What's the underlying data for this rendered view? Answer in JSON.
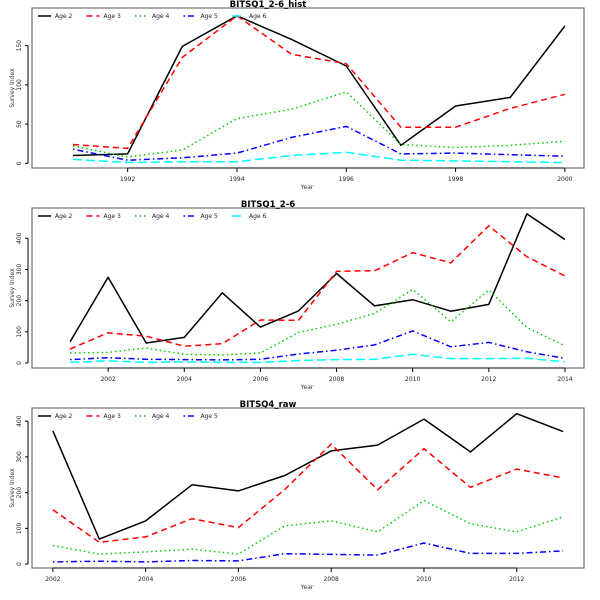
{
  "chart_data": [
    {
      "type": "line",
      "title": "BITSQ1_2-6_hist",
      "xlabel": "Year",
      "ylabel": "Survey Index",
      "x": [
        1991,
        1992,
        1993,
        1994,
        1995,
        1996,
        1997,
        1998,
        1999,
        2000
      ],
      "xlim": [
        1990.25,
        2000.35
      ],
      "ylim": [
        -6,
        198
      ],
      "xticks": [
        1992,
        1994,
        1996,
        1998,
        2000
      ],
      "yticks": [
        0,
        50,
        100,
        150
      ],
      "grid": false,
      "legend_position": "top-left, horizontal",
      "series": [
        {
          "name": "Age 2",
          "color": "#000000",
          "dash": "solid",
          "values": [
            10,
            12,
            149,
            188,
            158,
            124,
            23,
            73,
            84,
            175
          ]
        },
        {
          "name": "Age 3",
          "color": "#ff0000",
          "dash": "dashed",
          "values": [
            24,
            19,
            135,
            188,
            139,
            127,
            46,
            46,
            70,
            88
          ]
        },
        {
          "name": "Age 4",
          "color": "#00cd00",
          "dash": "dotted",
          "values": [
            22,
            8,
            17,
            57,
            69,
            91,
            24,
            20,
            23,
            28
          ]
        },
        {
          "name": "Age 5",
          "color": "#0000ff",
          "dash": "dotdash",
          "values": [
            18,
            4,
            7,
            13,
            33,
            47,
            12,
            13,
            11,
            9
          ]
        },
        {
          "name": "Age 6",
          "color": "#00ffff",
          "dash": "longdash",
          "values": [
            5,
            1,
            2,
            2,
            10,
            14,
            4,
            3,
            2,
            1
          ]
        }
      ]
    },
    {
      "type": "line",
      "title": "BITSQ1_2-6",
      "xlabel": "Year",
      "ylabel": "Survey Index",
      "x": [
        2001,
        2002,
        2003,
        2004,
        2005,
        2006,
        2007,
        2008,
        2009,
        2010,
        2011,
        2012,
        2013,
        2014
      ],
      "xlim": [
        2000.0,
        2014.5
      ],
      "ylim": [
        -16,
        497
      ],
      "xticks": [
        2002,
        2004,
        2006,
        2008,
        2010,
        2012,
        2014
      ],
      "yticks": [
        0,
        100,
        200,
        300,
        400
      ],
      "grid": false,
      "legend_position": "top-left, horizontal",
      "series": [
        {
          "name": "Age 2",
          "color": "#000000",
          "dash": "solid",
          "values": [
            68,
            275,
            64,
            82,
            225,
            115,
            167,
            287,
            183,
            203,
            166,
            188,
            478,
            396
          ]
        },
        {
          "name": "Age 3",
          "color": "#ff0000",
          "dash": "dashed",
          "values": [
            45,
            97,
            86,
            54,
            62,
            138,
            137,
            294,
            296,
            354,
            321,
            440,
            341,
            279
          ]
        },
        {
          "name": "Age 4",
          "color": "#00cd00",
          "dash": "dotted",
          "values": [
            32,
            34,
            48,
            28,
            26,
            32,
            98,
            124,
            159,
            236,
            132,
            234,
            114,
            55
          ]
        },
        {
          "name": "Age 5",
          "color": "#0000ff",
          "dash": "dotdash",
          "values": [
            11,
            17,
            12,
            11,
            10,
            12,
            29,
            41,
            58,
            103,
            52,
            66,
            36,
            15
          ]
        },
        {
          "name": "Age 6",
          "color": "#00ffff",
          "dash": "longdash",
          "values": [
            2,
            7,
            2,
            4,
            2,
            2,
            8,
            11,
            12,
            28,
            14,
            14,
            15,
            4
          ]
        }
      ]
    },
    {
      "type": "line",
      "title": "BITSQ4_raw",
      "xlabel": "Year",
      "ylabel": "Survey Index",
      "x": [
        2002,
        2003,
        2004,
        2005,
        2006,
        2007,
        2008,
        2009,
        2010,
        2011,
        2012,
        2013
      ],
      "xlim": [
        2001.55,
        2013.45
      ],
      "ylim": [
        -11,
        437
      ],
      "xticks": [
        2002,
        2004,
        2006,
        2008,
        2010,
        2012
      ],
      "yticks": [
        0,
        100,
        200,
        300,
        400
      ],
      "grid": false,
      "legend_position": "top-left, horizontal",
      "series": [
        {
          "name": "Age 2",
          "color": "#000000",
          "dash": "solid",
          "values": [
            373,
            70,
            121,
            222,
            205,
            248,
            317,
            333,
            406,
            314,
            421,
            371
          ]
        },
        {
          "name": "Age 3",
          "color": "#ff0000",
          "dash": "dashed",
          "values": [
            152,
            61,
            76,
            127,
            102,
            209,
            336,
            208,
            323,
            215,
            266,
            241
          ]
        },
        {
          "name": "Age 4",
          "color": "#00cd00",
          "dash": "dotted",
          "values": [
            52,
            28,
            34,
            42,
            28,
            107,
            121,
            90,
            178,
            113,
            90,
            132
          ]
        },
        {
          "name": "Age 5",
          "color": "#0000ff",
          "dash": "dotdash",
          "values": [
            6,
            8,
            6,
            10,
            9,
            29,
            27,
            25,
            59,
            30,
            30,
            37
          ]
        }
      ]
    }
  ]
}
